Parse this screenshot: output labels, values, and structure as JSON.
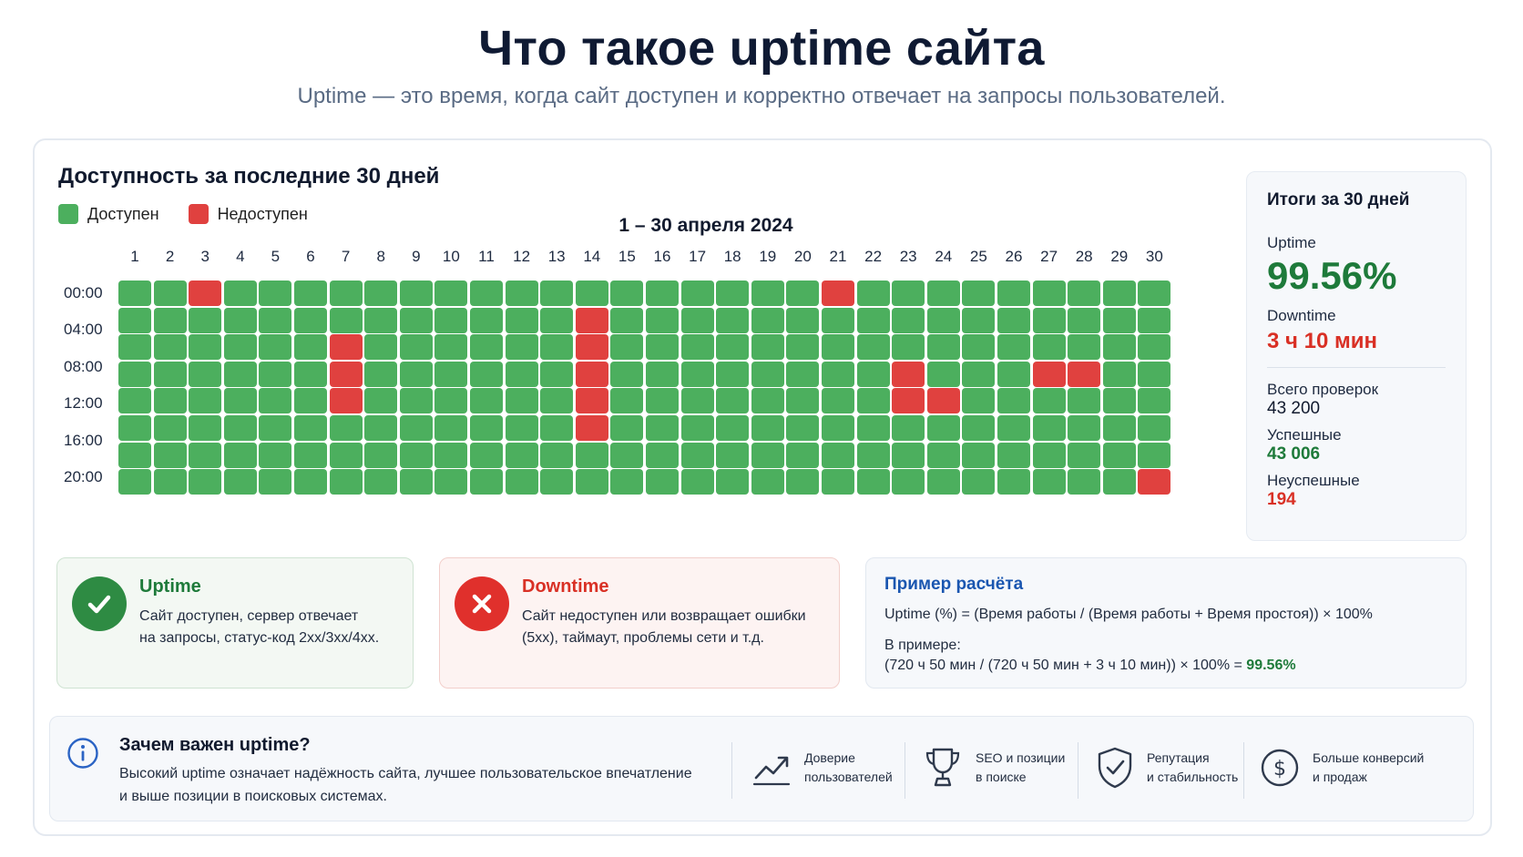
{
  "header": {
    "title": "Что такое uptime сайта",
    "subtitle": "Uptime — это время, когда сайт доступен и корректно отвечает на запросы пользователей."
  },
  "availability": {
    "title": "Доступность за последние 30 дней",
    "legend": {
      "up": "Доступен",
      "down": "Недоступен"
    },
    "period": "1 – 30 апреля 2024",
    "days": [
      "1",
      "2",
      "3",
      "4",
      "5",
      "6",
      "7",
      "8",
      "9",
      "10",
      "11",
      "12",
      "13",
      "14",
      "15",
      "16",
      "17",
      "18",
      "19",
      "20",
      "21",
      "22",
      "23",
      "24",
      "25",
      "26",
      "27",
      "28",
      "29",
      "30"
    ],
    "hours": [
      "00:00",
      "04:00",
      "08:00",
      "12:00",
      "16:00",
      "20:00"
    ],
    "rows": 8,
    "down_cells": [
      [
        0,
        3
      ],
      [
        0,
        21
      ],
      [
        1,
        14
      ],
      [
        2,
        7
      ],
      [
        2,
        14
      ],
      [
        3,
        7
      ],
      [
        3,
        14
      ],
      [
        3,
        23
      ],
      [
        3,
        27
      ],
      [
        3,
        28
      ],
      [
        4,
        7
      ],
      [
        4,
        14
      ],
      [
        4,
        23
      ],
      [
        4,
        24
      ],
      [
        5,
        14
      ],
      [
        7,
        30
      ]
    ],
    "colors": {
      "up": "#4caf5e",
      "down": "#e0413f"
    }
  },
  "summary": {
    "title": "Итоги за 30 дней",
    "uptime_label": "Uptime",
    "uptime_value": "99.56%",
    "downtime_label": "Downtime",
    "downtime_value": "3 ч 10 мин",
    "total_label": "Всего проверок",
    "total_value": "43 200",
    "success_label": "Успешные",
    "success_value": "43 006",
    "fail_label": "Неуспешные",
    "fail_value": "194"
  },
  "uptime_box": {
    "title": "Uptime",
    "text_line1": "Сайт доступен, сервер отвечает",
    "text_line2": "на запросы, статус-код 2xx/3xx/4xx."
  },
  "downtime_box": {
    "title": "Downtime",
    "text_line1": "Сайт недоступен или возвращает ошибки",
    "text_line2": "(5xx), таймаут, проблемы сети и т.д."
  },
  "calc_box": {
    "title": "Пример расчёта",
    "formula": "Uptime (%) = (Время работы / (Время работы + Время простоя)) × 100%",
    "example_label": "В примере:",
    "example": "(720 ч 50 мин / (720 ч 50 мин + 3 ч 10 мин)) × 100% = ",
    "result": "99.56%"
  },
  "why": {
    "title": "Зачем важен uptime?",
    "text_line1": "Высокий uptime означает надёжность сайта, лучшее пользовательское впечатление",
    "text_line2": "и выше позиции в поисковых системах.",
    "features": [
      {
        "icon": "trend-up-icon",
        "label": "Доверие\nпользователей"
      },
      {
        "icon": "trophy-icon",
        "label": "SEO и позиции\nв поиске"
      },
      {
        "icon": "shield-check-icon",
        "label": "Репутация\nи стабильность"
      },
      {
        "icon": "dollar-icon",
        "label": "Больше конверсий\nи продаж"
      }
    ]
  }
}
